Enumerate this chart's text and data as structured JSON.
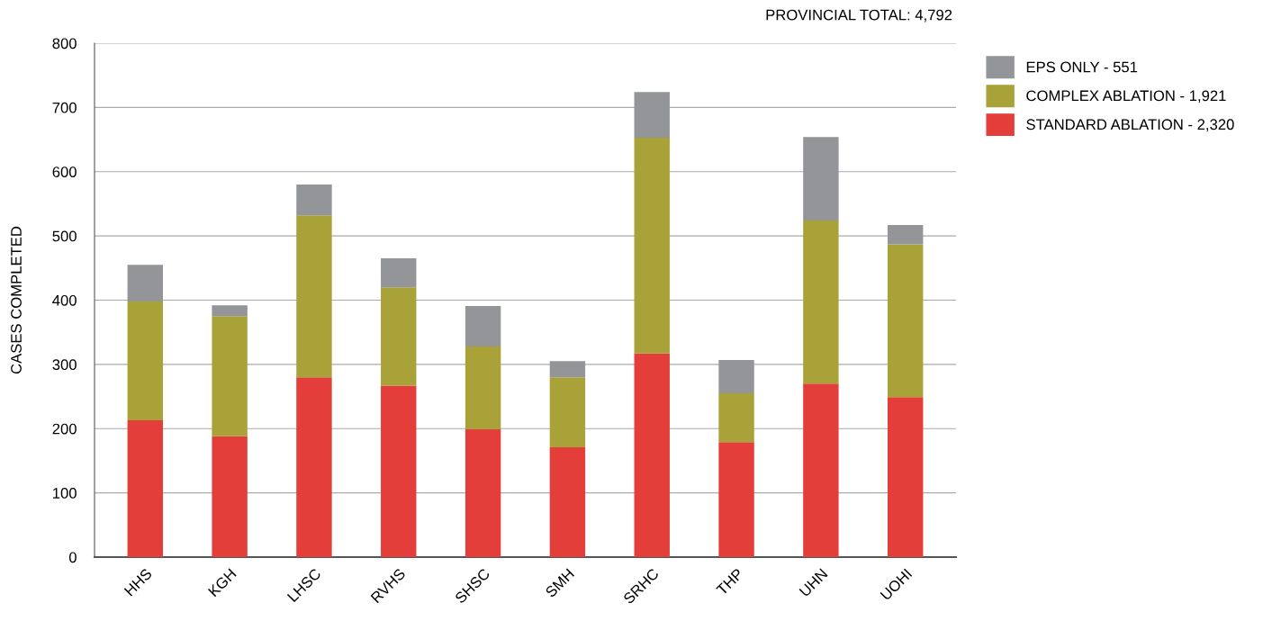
{
  "chart_data": {
    "type": "bar",
    "stacked": true,
    "ylabel": "CASES COMPLETED",
    "categories": [
      "HHS",
      "KGH",
      "LHSC",
      "RVHS",
      "SHSC",
      "SMH",
      "SRHC",
      "THP",
      "UHN",
      "UOHI"
    ],
    "series": [
      {
        "name": "STANDARD ABLATION - 2,320",
        "color": "#e33e3a",
        "values": [
          213,
          188,
          280,
          267,
          199,
          171,
          317,
          179,
          270,
          249
        ]
      },
      {
        "name": "COMPLEX ABLATION - 1,921",
        "color": "#a9a238",
        "values": [
          185,
          187,
          252,
          153,
          129,
          109,
          336,
          76,
          254,
          238
        ]
      },
      {
        "name": "EPS ONLY - 551",
        "color": "#939598",
        "values": [
          57,
          17,
          48,
          45,
          63,
          25,
          71,
          52,
          130,
          30
        ]
      }
    ],
    "ylim": [
      0,
      800
    ],
    "yticks": [
      0,
      100,
      200,
      300,
      400,
      500,
      600,
      700,
      800
    ],
    "grid": "y",
    "legend": "top right",
    "annotations": [
      "PROVINCIAL TOTAL: 4,792"
    ]
  }
}
